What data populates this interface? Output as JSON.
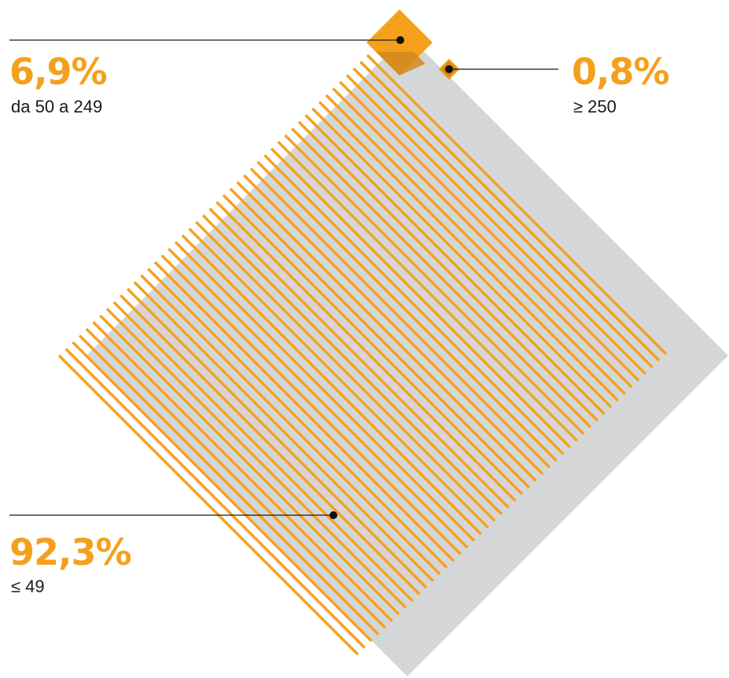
{
  "colors": {
    "accent": "#f5a01d",
    "accent_dark": "#d18a1e",
    "gray": "#d5d6d8",
    "text": "#1a1a1a"
  },
  "chart_data": {
    "type": "area",
    "units": "%",
    "series": [
      {
        "category": "≤ 49",
        "value": 92.3,
        "label": "92,3%"
      },
      {
        "category": "da 50 a 249",
        "value": 6.9,
        "label": "6,9%"
      },
      {
        "category": "≥ 250",
        "value": 0.8,
        "label": "0,8%"
      }
    ],
    "legend": "none",
    "grid": false
  },
  "labels": {
    "mid": {
      "value": "6,9%",
      "category": "da 50 a 249"
    },
    "big": {
      "value": "0,8%",
      "category": "≥ 250"
    },
    "small": {
      "value": "92,3%",
      "category": "≤ 49"
    }
  }
}
